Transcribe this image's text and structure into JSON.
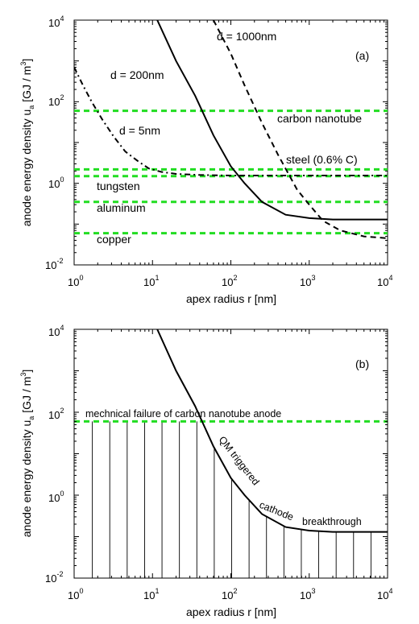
{
  "chart_data": [
    {
      "type": "line",
      "panel_label": "(a)",
      "xlabel": "apex radius r [nm]",
      "ylabel": "anode energy density u",
      "ylabel_sub": "a",
      "ylabel_units": "[GJ / m",
      "ylabel_units_sup": "3",
      "ylabel_units_end": "]",
      "xscale": "log",
      "yscale": "log",
      "xlim": [
        1,
        10000
      ],
      "ylim": [
        0.01,
        10000
      ],
      "x_ticks": [
        {
          "base": "10",
          "exp": "0"
        },
        {
          "base": "10",
          "exp": "1"
        },
        {
          "base": "10",
          "exp": "2"
        },
        {
          "base": "10",
          "exp": "3"
        },
        {
          "base": "10",
          "exp": "4"
        }
      ],
      "y_ticks": [
        {
          "base": "10",
          "exp": "-2"
        },
        {
          "base": "10",
          "exp": "0"
        },
        {
          "base": "10",
          "exp": "2"
        },
        {
          "base": "10",
          "exp": "4"
        }
      ],
      "series": [
        {
          "label": "d = 5nm",
          "style": "dashdot",
          "color": "#000000",
          "x": [
            1,
            1.3,
            1.7,
            2.3,
            3.2,
            4.5,
            6.5,
            9,
            13,
            20,
            40,
            100,
            1000,
            10000
          ],
          "y": [
            700,
            250,
            95,
            36,
            14,
            6,
            3.5,
            2.3,
            1.9,
            1.7,
            1.6,
            1.55,
            1.55,
            1.55
          ]
        },
        {
          "label": "d = 200nm",
          "style": "solid",
          "color": "#000000",
          "x": [
            11.5,
            20,
            35,
            60,
            100,
            150,
            250,
            500,
            1000,
            2000,
            5000,
            10000
          ],
          "y": [
            10000,
            1000,
            140,
            15,
            2.6,
            1.0,
            0.35,
            0.17,
            0.14,
            0.13,
            0.13,
            0.13
          ]
        },
        {
          "label": "d = 1000nm",
          "style": "dashed",
          "color": "#000000",
          "x": [
            60,
            100,
            150,
            250,
            400,
            700,
            1000,
            1500,
            2500,
            5000,
            10000
          ],
          "y": [
            10000,
            1500,
            250,
            30,
            5,
            0.7,
            0.3,
            0.12,
            0.07,
            0.05,
            0.045
          ]
        }
      ],
      "hlines": [
        {
          "label": "carbon nanotube",
          "y": 60,
          "color": "#22dd22",
          "style": "dashed"
        },
        {
          "label": "steel (0.6% C)",
          "y": 2.2,
          "color": "#22dd22",
          "style": "dashed"
        },
        {
          "label": "tungsten",
          "y": 1.5,
          "color": "#22dd22",
          "style": "dashed"
        },
        {
          "label": "aluminum",
          "y": 0.35,
          "color": "#22dd22",
          "style": "dashed"
        },
        {
          "label": "copper",
          "y": 0.06,
          "color": "#22dd22",
          "style": "dashed"
        }
      ]
    },
    {
      "type": "line",
      "panel_label": "(b)",
      "xlabel": "apex radius r [nm]",
      "ylabel": "anode energy density u",
      "ylabel_sub": "a",
      "ylabel_units": "[GJ / m",
      "ylabel_units_sup": "3",
      "ylabel_units_end": "]",
      "xscale": "log",
      "yscale": "log",
      "xlim": [
        1,
        10000
      ],
      "ylim": [
        0.01,
        10000
      ],
      "x_ticks": [
        {
          "base": "10",
          "exp": "0"
        },
        {
          "base": "10",
          "exp": "1"
        },
        {
          "base": "10",
          "exp": "2"
        },
        {
          "base": "10",
          "exp": "3"
        },
        {
          "base": "10",
          "exp": "4"
        }
      ],
      "y_ticks": [
        {
          "base": "10",
          "exp": "-2"
        },
        {
          "base": "10",
          "exp": "0"
        },
        {
          "base": "10",
          "exp": "2"
        },
        {
          "base": "10",
          "exp": "4"
        }
      ],
      "series": [
        {
          "label": "",
          "style": "solid",
          "color": "#000000",
          "x": [
            11.5,
            20,
            35,
            60,
            100,
            150,
            250,
            500,
            1000,
            2000,
            5000,
            10000
          ],
          "y": [
            10000,
            1000,
            140,
            15,
            2.6,
            1.0,
            0.35,
            0.17,
            0.14,
            0.13,
            0.13,
            0.13
          ]
        }
      ],
      "hlines": [
        {
          "label": "mechnical failure of carbon nanotube anode",
          "y": 60,
          "color": "#22dd22",
          "style": "dashed"
        }
      ],
      "hatch_note": "vertical hatch lines below min(curve, 60)",
      "curve_annotation": {
        "words": [
          "QM triggered",
          "cathode",
          "breakthrough"
        ]
      }
    }
  ]
}
